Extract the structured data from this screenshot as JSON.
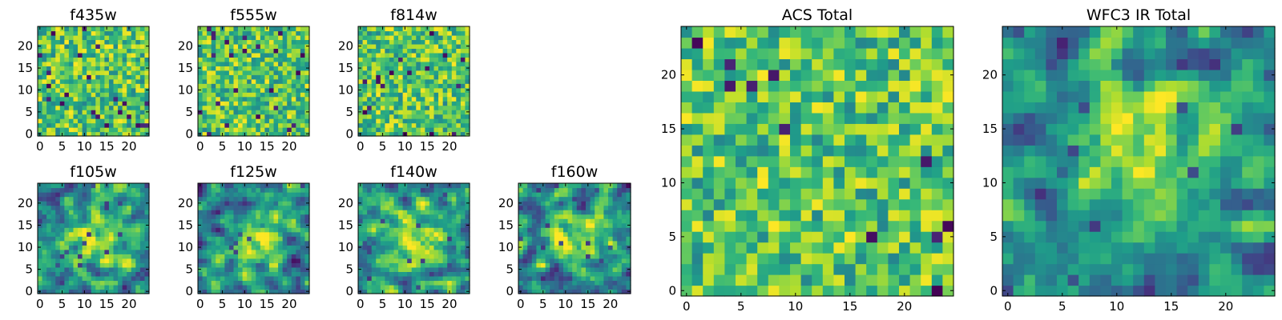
{
  "chart_data": [
    {
      "id": "f435w",
      "type": "heatmap",
      "title": "f435w",
      "grid": [
        25,
        25
      ],
      "colormap": "viridis",
      "xticks": [
        0,
        5,
        10,
        15,
        20
      ],
      "yticks": [
        0,
        5,
        10,
        15,
        20
      ],
      "xlim": [
        0,
        25
      ],
      "ylim": [
        0,
        25
      ],
      "texture": "noisy"
    },
    {
      "id": "f555w",
      "type": "heatmap",
      "title": "f555w",
      "grid": [
        25,
        25
      ],
      "colormap": "viridis",
      "xticks": [
        0,
        5,
        10,
        15,
        20
      ],
      "yticks": [
        0,
        5,
        10,
        15,
        20
      ],
      "xlim": [
        0,
        25
      ],
      "ylim": [
        0,
        25
      ],
      "texture": "noisy"
    },
    {
      "id": "f814w",
      "type": "heatmap",
      "title": "f814w",
      "grid": [
        25,
        25
      ],
      "colormap": "viridis",
      "xticks": [
        0,
        5,
        10,
        15,
        20
      ],
      "yticks": [
        0,
        5,
        10,
        15,
        20
      ],
      "xlim": [
        0,
        25
      ],
      "ylim": [
        0,
        25
      ],
      "texture": "noisy"
    },
    {
      "id": "f105w",
      "type": "heatmap",
      "title": "f105w",
      "grid": [
        25,
        25
      ],
      "colormap": "viridis",
      "xticks": [
        0,
        5,
        10,
        15,
        20
      ],
      "yticks": [
        0,
        5,
        10,
        15,
        20
      ],
      "xlim": [
        0,
        25
      ],
      "ylim": [
        0,
        25
      ],
      "texture": "smooth"
    },
    {
      "id": "f125w",
      "type": "heatmap",
      "title": "f125w",
      "grid": [
        25,
        25
      ],
      "colormap": "viridis",
      "xticks": [
        0,
        5,
        10,
        15,
        20
      ],
      "yticks": [
        0,
        5,
        10,
        15,
        20
      ],
      "xlim": [
        0,
        25
      ],
      "ylim": [
        0,
        25
      ],
      "texture": "smooth"
    },
    {
      "id": "f140w",
      "type": "heatmap",
      "title": "f140w",
      "grid": [
        25,
        25
      ],
      "colormap": "viridis",
      "xticks": [
        0,
        5,
        10,
        15,
        20
      ],
      "yticks": [
        0,
        5,
        10,
        15,
        20
      ],
      "xlim": [
        0,
        25
      ],
      "ylim": [
        0,
        25
      ],
      "texture": "smooth"
    },
    {
      "id": "f160w",
      "type": "heatmap",
      "title": "f160w",
      "grid": [
        25,
        25
      ],
      "colormap": "viridis",
      "xticks": [
        0,
        5,
        10,
        15,
        20
      ],
      "yticks": [
        0,
        5,
        10,
        15,
        20
      ],
      "xlim": [
        0,
        25
      ],
      "ylim": [
        0,
        25
      ],
      "texture": "smooth"
    },
    {
      "id": "acs-total",
      "type": "heatmap",
      "title": "ACS Total",
      "grid": [
        25,
        25
      ],
      "colormap": "viridis",
      "xticks": [
        0,
        5,
        10,
        15,
        20
      ],
      "yticks": [
        0,
        5,
        10,
        15,
        20
      ],
      "xlim": [
        0,
        25
      ],
      "ylim": [
        0,
        25
      ],
      "texture": "noisy"
    },
    {
      "id": "wfc3-ir-total",
      "type": "heatmap",
      "title": "WFC3 IR Total",
      "grid": [
        25,
        25
      ],
      "colormap": "viridis",
      "xticks": [
        0,
        5,
        10,
        15,
        20
      ],
      "yticks": [
        0,
        5,
        10,
        15,
        20
      ],
      "xlim": [
        0,
        25
      ],
      "ylim": [
        0,
        25
      ],
      "texture": "smooth"
    }
  ]
}
